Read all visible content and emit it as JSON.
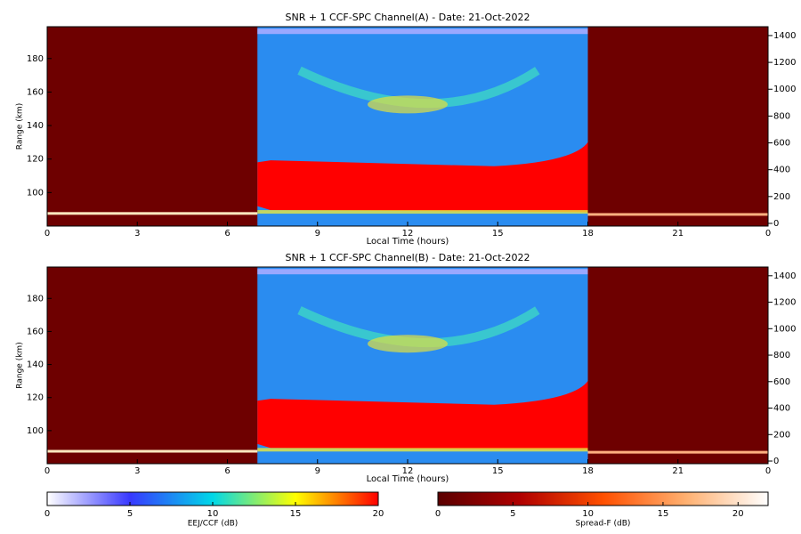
{
  "chart_data": [
    {
      "type": "heatmap",
      "title": "SNR + 1 CCF-SPC Channel(A) - Date: 21-Oct-2022",
      "xlabel": "Local Time (hours)",
      "ylabel": "Range (km)",
      "xlim": [
        0,
        24
      ],
      "xticks": [
        0,
        3,
        6,
        9,
        12,
        15,
        18,
        21,
        {
          "value": 24,
          "label": "0"
        }
      ],
      "ylim": [
        80,
        199
      ],
      "yticks": [
        100,
        120,
        140,
        160,
        180
      ],
      "y2lim": [
        -20,
        1466
      ],
      "y2ticks": [
        0,
        200,
        400,
        600,
        800,
        1000,
        1200,
        1400
      ]
    },
    {
      "type": "heatmap",
      "title": "SNR + 1 CCF-SPC Channel(B) - Date: 21-Oct-2022",
      "xlabel": "Local Time (hours)",
      "ylabel": "Range (km)",
      "xlim": [
        0,
        24
      ],
      "xticks": [
        0,
        3,
        6,
        9,
        12,
        15,
        18,
        21,
        {
          "value": 24,
          "label": "0"
        }
      ],
      "ylim": [
        80,
        199
      ],
      "yticks": [
        100,
        120,
        140,
        160,
        180
      ],
      "y2lim": [
        -20,
        1466
      ],
      "y2ticks": [
        0,
        200,
        400,
        600,
        800,
        1000,
        1200,
        1400
      ]
    }
  ],
  "colorbars": [
    {
      "label": "EEJ/CCF (dB)",
      "lim": [
        0,
        20
      ],
      "ticks": [
        0,
        5,
        10,
        15,
        20
      ],
      "colors": [
        "#ffffff",
        "#3838ff",
        "#00d8e8",
        "#ffff00",
        "#ff0000"
      ]
    },
    {
      "label": "Spread-F (dB)",
      "lim": [
        0,
        22
      ],
      "ticks": [
        0,
        5,
        10,
        15,
        20
      ],
      "colors": [
        "#5a0000",
        "#b00000",
        "#ff5000",
        "#ffb070",
        "#ffffff"
      ]
    }
  ]
}
